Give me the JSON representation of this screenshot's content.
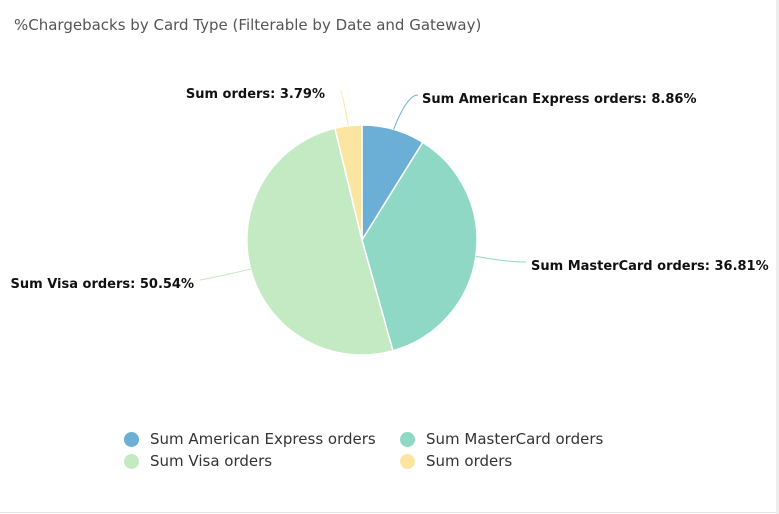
{
  "title": "%Chargebacks by Card Type (Filterable by Date and Gateway)",
  "chart_data": {
    "type": "pie",
    "title": "%Chargebacks by Card Type (Filterable by Date and Gateway)",
    "legend_position": "bottom",
    "slices": [
      {
        "name": "Sum American Express orders",
        "value": 8.86,
        "label": "Sum American Express orders: 8.86%",
        "color": "#6baed6"
      },
      {
        "name": "Sum MasterCard orders",
        "value": 36.81,
        "label": "Sum MasterCard orders: 36.81%",
        "color": "#8fd8c6"
      },
      {
        "name": "Sum Visa orders",
        "value": 50.54,
        "label": "Sum Visa orders: 50.54%",
        "color": "#c4eac4"
      },
      {
        "name": "Sum orders",
        "value": 3.79,
        "label": "Sum orders: 3.79%",
        "color": "#fbe5a1"
      }
    ]
  },
  "legend": {
    "items": [
      {
        "label": "Sum American Express orders",
        "color": "#6baed6"
      },
      {
        "label": "Sum MasterCard orders",
        "color": "#8fd8c6"
      },
      {
        "label": "Sum Visa orders",
        "color": "#c4eac4"
      },
      {
        "label": "Sum orders",
        "color": "#fbe5a1"
      }
    ]
  }
}
